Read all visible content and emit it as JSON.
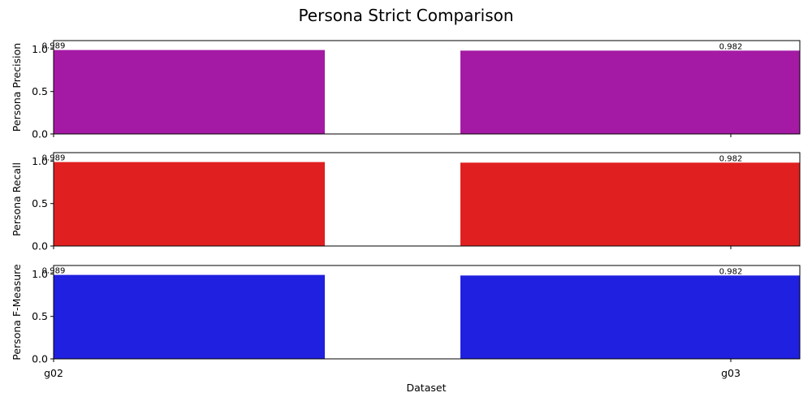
{
  "chart_data": {
    "type": "bar",
    "title": "Persona Strict Comparison",
    "xlabel": "Dataset",
    "categories": [
      "g02",
      "g03"
    ],
    "ylim": [
      0,
      1.1
    ],
    "yticks": [
      "0.0",
      "0.5",
      "1.0"
    ],
    "grid": false,
    "series": [
      {
        "ylabel": "Persona Precision",
        "values": [
          0.989,
          0.982
        ],
        "labels": [
          "0.989",
          "0.982"
        ],
        "color": "#a51aa5"
      },
      {
        "ylabel": "Persona Recall",
        "values": [
          0.989,
          0.982
        ],
        "labels": [
          "0.989",
          "0.982"
        ],
        "color": "#e02020"
      },
      {
        "ylabel": "Persona F-Measure",
        "values": [
          0.989,
          0.982
        ],
        "labels": [
          "0.989",
          "0.982"
        ],
        "color": "#2020e0"
      }
    ]
  }
}
